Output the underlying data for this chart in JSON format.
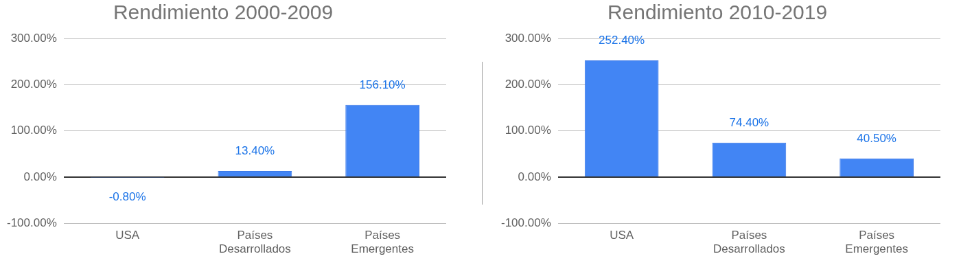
{
  "chart_data": [
    {
      "type": "bar",
      "title": "Rendimiento 2000-2009",
      "categories": [
        "USA",
        "Países Desarrollados",
        "Países Emergentes"
      ],
      "values": [
        -0.8,
        13.4,
        156.1
      ],
      "color": "#4285f4",
      "value_labels": [
        "-0.80%",
        "13.40%",
        "156.10%"
      ],
      "ylim": [
        -100,
        300
      ],
      "yticks": [
        {
          "value": -100,
          "label": "-100.00%"
        },
        {
          "value": 0,
          "label": "0.00%"
        },
        {
          "value": 100,
          "label": "100.00%"
        },
        {
          "value": 200,
          "label": "200.00%"
        },
        {
          "value": 300,
          "label": "300.00%"
        }
      ],
      "grid": "y"
    },
    {
      "type": "bar",
      "title": "Rendimiento 2010-2019",
      "categories": [
        "USA",
        "Países Desarrollados",
        "Países Emergentes"
      ],
      "values": [
        252.4,
        74.4,
        40.5
      ],
      "color": "#4285f4",
      "value_labels": [
        "252.40%",
        "74.40%",
        "40.50%"
      ],
      "ylim": [
        -100,
        300
      ],
      "yticks": [
        {
          "value": -100,
          "label": "-100.00%"
        },
        {
          "value": 0,
          "label": "0.00%"
        },
        {
          "value": 100,
          "label": "100.00%"
        },
        {
          "value": 200,
          "label": "200.00%"
        },
        {
          "value": 300,
          "label": "300.00%"
        }
      ],
      "grid": "y"
    }
  ]
}
